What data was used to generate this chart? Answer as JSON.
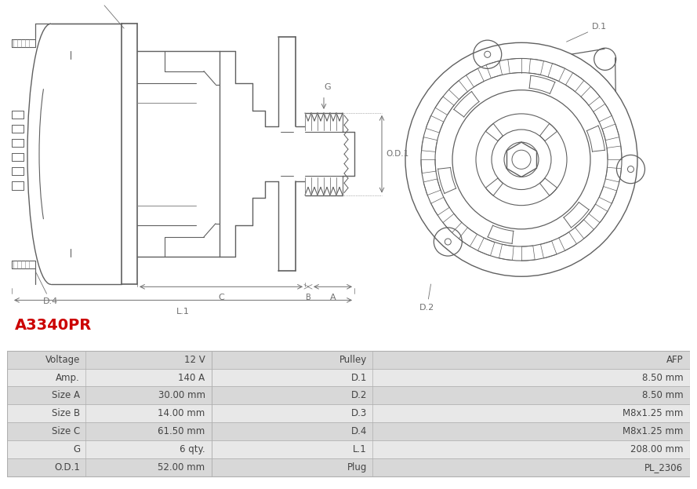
{
  "title": "A3340PR",
  "title_color": "#cc0000",
  "table_headers_left": [
    "Voltage",
    "Amp.",
    "Size A",
    "Size B",
    "Size C",
    "G",
    "O.D.1"
  ],
  "table_values_left": [
    "12 V",
    "140 A",
    "30.00 mm",
    "14.00 mm",
    "61.50 mm",
    "6 qty.",
    "52.00 mm"
  ],
  "table_headers_right": [
    "Pulley",
    "D.1",
    "D.2",
    "D.3",
    "D.4",
    "L.1",
    "Plug"
  ],
  "table_values_right": [
    "AFP",
    "8.50 mm",
    "8.50 mm",
    "M8x1.25 mm",
    "M8x1.25 mm",
    "208.00 mm",
    "PL_2306"
  ],
  "row_color_a": "#d8d8d8",
  "row_color_b": "#e8e8e8",
  "bg_color": "#ffffff",
  "border_color": "#b0b0b0",
  "text_color": "#444444",
  "line_color": "#606060"
}
